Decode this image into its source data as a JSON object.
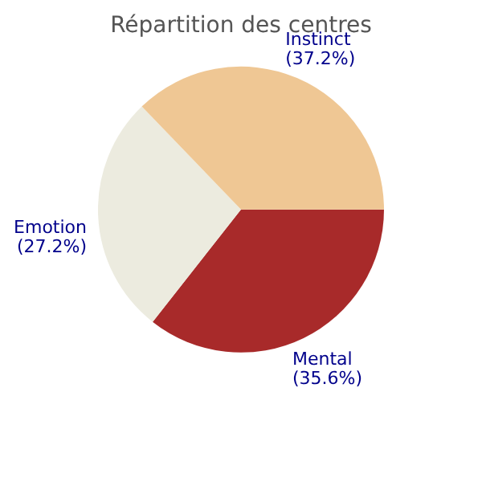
{
  "chart_data": {
    "type": "pie",
    "title": "Répartition des centres",
    "categories": [
      "Mental",
      "Emotion",
      "Instinct"
    ],
    "values": [
      35.6,
      27.2,
      37.2
    ],
    "colors": [
      "#a82a2a",
      "#ecebdf",
      "#efc794"
    ],
    "value_labels": [
      "(35.6%)",
      "(27.2%)",
      "(37.2%)"
    ],
    "legend": false
  }
}
